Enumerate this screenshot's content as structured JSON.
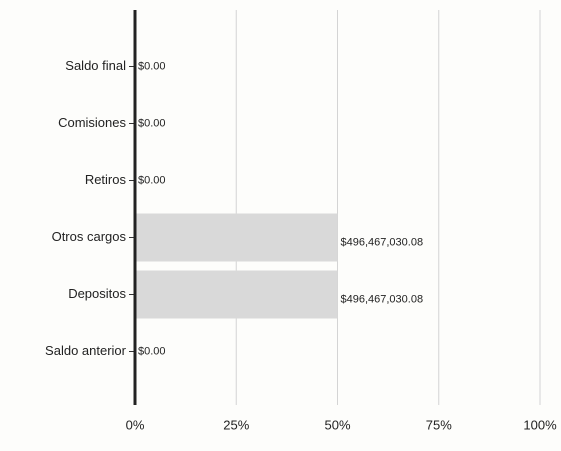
{
  "chart_data": {
    "type": "bar",
    "orientation": "horizontal",
    "categories": [
      "Saldo final",
      "Comisiones",
      "Retiros",
      "Otros cargos",
      "Depositos",
      "Saldo anterior"
    ],
    "values": [
      0,
      0,
      0,
      496467030.08,
      496467030.08,
      0
    ],
    "value_labels": [
      "$0.00",
      "$0.00",
      "$0.00",
      "$496,467,030.08",
      "$496,467,030.08",
      "$0.00"
    ],
    "color": "#d9d9d9",
    "xlim": [
      0,
      992934060.16
    ],
    "xticks": [
      {
        "value": 0,
        "label": "0%"
      },
      {
        "value": 248233515.04,
        "label": "25%"
      },
      {
        "value": 496467030.08,
        "label": "50%"
      },
      {
        "value": 744700545.12,
        "label": "75%"
      },
      {
        "value": 992934060.16,
        "label": "100%"
      }
    ],
    "grid": true
  }
}
